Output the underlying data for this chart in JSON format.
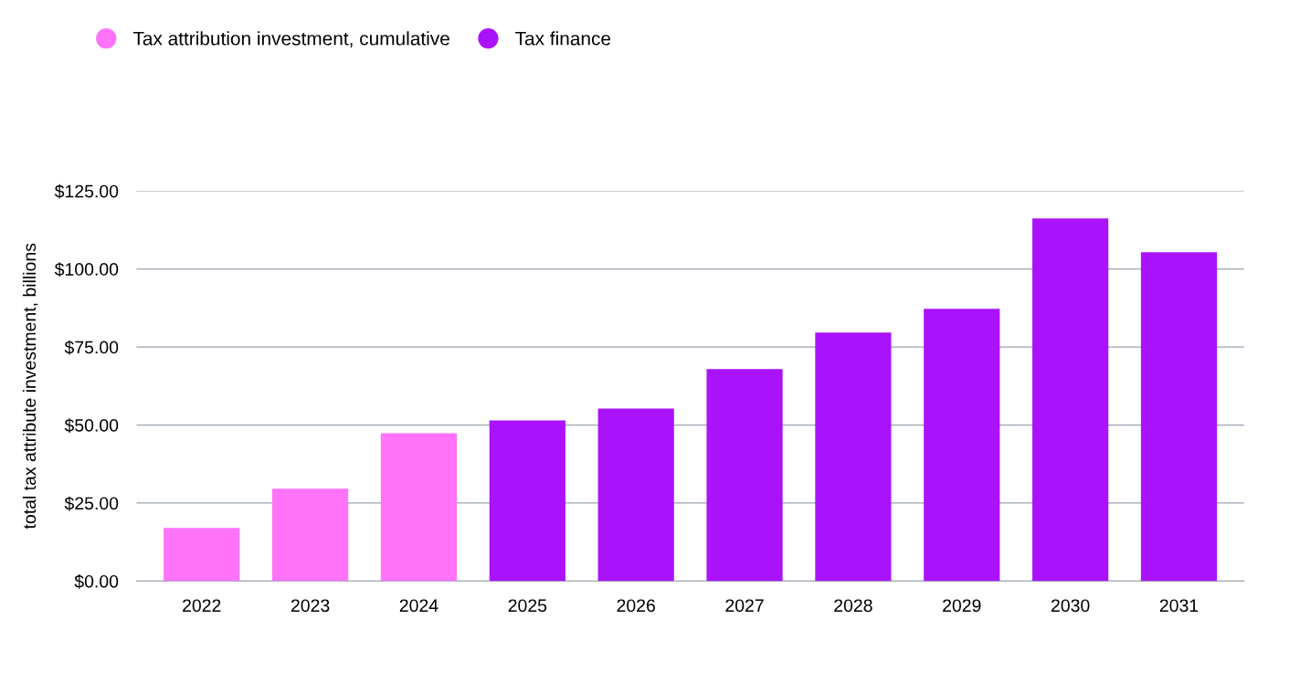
{
  "chart_data": {
    "type": "bar",
    "ylabel": "total tax attribute investment, billions",
    "categories": [
      "2022",
      "2023",
      "2024",
      "2025",
      "2026",
      "2027",
      "2028",
      "2029",
      "2030",
      "2031"
    ],
    "series": [
      {
        "name": "Tax attribution investment, cumulative",
        "color": "#ff73f9",
        "values": [
          17.0,
          29.6,
          47.4,
          null,
          null,
          null,
          null,
          null,
          null,
          null
        ]
      },
      {
        "name": "Tax finance",
        "color": "#ab12fc",
        "values": [
          null,
          null,
          null,
          51.5,
          55.3,
          67.9,
          79.6,
          87.2,
          116.2,
          105.4
        ]
      }
    ],
    "ylim": [
      0,
      125
    ],
    "yticks": [
      {
        "value": 0,
        "label": "$0.00"
      },
      {
        "value": 25,
        "label": "$25.00"
      },
      {
        "value": 50,
        "label": "$50.00"
      },
      {
        "value": 75,
        "label": "$75.00"
      },
      {
        "value": 100,
        "label": "$100.00"
      },
      {
        "value": 125,
        "label": "$125.00"
      }
    ],
    "grid": "y",
    "legend": "top left",
    "marker": "circle"
  }
}
